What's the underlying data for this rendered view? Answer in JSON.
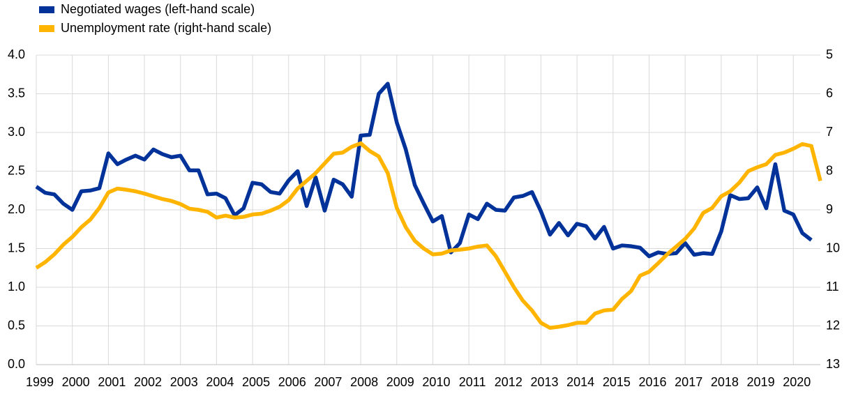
{
  "chart_data": {
    "type": "line",
    "x": [
      1999,
      1999.25,
      1999.5,
      1999.75,
      2000,
      2000.25,
      2000.5,
      2000.75,
      2001,
      2001.25,
      2001.5,
      2001.75,
      2002,
      2002.25,
      2002.5,
      2002.75,
      2003,
      2003.25,
      2003.5,
      2003.75,
      2004,
      2004.25,
      2004.5,
      2004.75,
      2005,
      2005.25,
      2005.5,
      2005.75,
      2006,
      2006.25,
      2006.5,
      2006.75,
      2007,
      2007.25,
      2007.5,
      2007.75,
      2008,
      2008.25,
      2008.5,
      2008.75,
      2009,
      2009.25,
      2009.5,
      2009.75,
      2010,
      2010.25,
      2010.5,
      2010.75,
      2011,
      2011.25,
      2011.5,
      2011.75,
      2012,
      2012.25,
      2012.5,
      2012.75,
      2013,
      2013.25,
      2013.5,
      2013.75,
      2014,
      2014.25,
      2014.5,
      2014.75,
      2015,
      2015.25,
      2015.5,
      2015.75,
      2016,
      2016.25,
      2016.5,
      2016.75,
      2017,
      2017.25,
      2017.5,
      2017.75,
      2018,
      2018.25,
      2018.5,
      2018.75,
      2019,
      2019.25,
      2019.5,
      2019.75,
      2020,
      2020.25,
      2020.5,
      2020.75
    ],
    "series": [
      {
        "name": "Negotiated wages (left-hand scale)",
        "color": "#003299",
        "values": [
          2.3,
          2.22,
          2.2,
          2.08,
          2.0,
          2.24,
          2.25,
          2.28,
          2.73,
          2.59,
          2.65,
          2.7,
          2.65,
          2.78,
          2.72,
          2.68,
          2.7,
          2.51,
          2.51,
          2.2,
          2.21,
          2.15,
          1.93,
          2.02,
          2.35,
          2.33,
          2.23,
          2.21,
          2.38,
          2.5,
          2.05,
          2.42,
          1.99,
          2.39,
          2.33,
          2.17,
          2.96,
          2.97,
          3.5,
          3.63,
          3.13,
          2.78,
          2.32,
          2.08,
          1.85,
          1.92,
          1.45,
          1.57,
          1.94,
          1.88,
          2.08,
          2.0,
          1.99,
          2.16,
          2.18,
          2.23,
          1.98,
          1.68,
          1.83,
          1.67,
          1.82,
          1.79,
          1.63,
          1.78,
          1.5,
          1.54,
          1.53,
          1.51,
          1.4,
          1.45,
          1.43,
          1.44,
          1.57,
          1.42,
          1.44,
          1.43,
          1.72,
          2.19,
          2.14,
          2.15,
          2.29,
          2.02,
          2.59,
          1.99,
          1.94,
          1.7,
          1.61,
          null
        ]
      },
      {
        "name": "Unemployment rate (right-hand scale)",
        "color": "#ffb400",
        "axis": "y2",
        "values": [
          10.5,
          10.35,
          10.15,
          9.9,
          9.7,
          9.45,
          9.25,
          8.95,
          8.55,
          8.45,
          8.48,
          8.52,
          8.58,
          8.65,
          8.72,
          8.77,
          8.85,
          8.97,
          9.0,
          9.05,
          9.2,
          9.15,
          9.2,
          9.18,
          9.12,
          9.1,
          9.02,
          8.92,
          8.75,
          8.45,
          8.25,
          8.05,
          7.8,
          7.55,
          7.52,
          7.37,
          7.28,
          7.48,
          7.62,
          8.05,
          8.95,
          9.45,
          9.8,
          10.0,
          10.15,
          10.13,
          10.05,
          10.03,
          10.0,
          9.95,
          9.92,
          10.2,
          10.6,
          11.0,
          11.35,
          11.6,
          11.92,
          12.05,
          12.02,
          11.98,
          11.92,
          11.92,
          11.68,
          11.6,
          11.58,
          11.3,
          11.1,
          10.7,
          10.6,
          10.38,
          10.15,
          9.95,
          9.75,
          9.48,
          9.08,
          8.95,
          8.65,
          8.52,
          8.3,
          8.0,
          7.9,
          7.82,
          7.58,
          7.52,
          7.42,
          7.3,
          7.35,
          8.25
        ]
      }
    ],
    "xlim": [
      1999,
      2020.75
    ],
    "xticks": [
      1999,
      2000,
      2001,
      2002,
      2003,
      2004,
      2005,
      2006,
      2007,
      2008,
      2009,
      2010,
      2011,
      2012,
      2013,
      2014,
      2015,
      2016,
      2017,
      2018,
      2019,
      2020
    ],
    "ylim": [
      0,
      4
    ],
    "yticks": [
      {
        "value": 0,
        "label": "0.0"
      },
      {
        "value": 0.5,
        "label": "0.5"
      },
      {
        "value": 1,
        "label": "1.0"
      },
      {
        "value": 1.5,
        "label": "1.5"
      },
      {
        "value": 2,
        "label": "2.0"
      },
      {
        "value": 2.5,
        "label": "2.5"
      },
      {
        "value": 3,
        "label": "3.0"
      },
      {
        "value": 3.5,
        "label": "3.5"
      },
      {
        "value": 4,
        "label": "4.0"
      }
    ],
    "y2lim": [
      13,
      5
    ],
    "y2ticks": [
      5,
      6,
      7,
      8,
      9,
      10,
      11,
      12,
      13
    ],
    "grid": true,
    "legend": "top-left"
  }
}
